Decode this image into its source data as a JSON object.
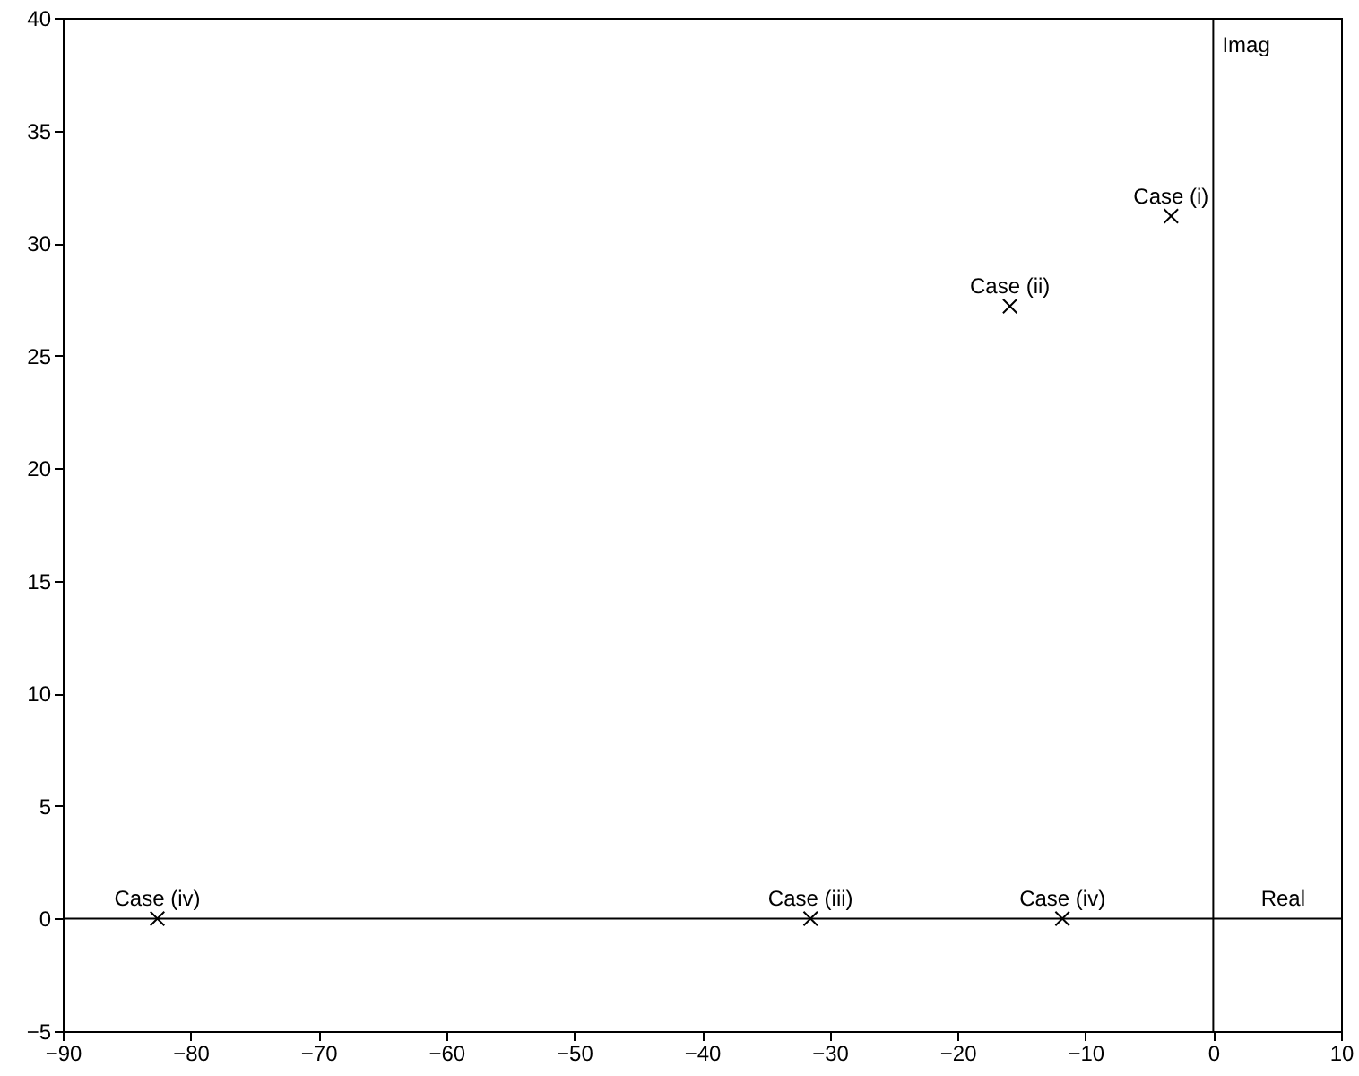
{
  "chart_data": {
    "type": "scatter",
    "x": [
      -3.3,
      -15.9,
      -31.5,
      -11.8,
      -82.6
    ],
    "series": [
      {
        "color": "#000000",
        "values": [
          31.2,
          27.2,
          0,
          0,
          0
        ]
      }
    ],
    "marker": "cross",
    "xlim": [
      -90,
      10
    ],
    "ylim": [
      -5,
      40
    ],
    "xticks": [
      -90,
      -80,
      -70,
      -60,
      -50,
      -40,
      -30,
      -20,
      -10,
      0,
      10
    ],
    "yticks": [
      -5,
      0,
      5,
      10,
      15,
      20,
      25,
      30,
      35,
      40
    ],
    "grid": false,
    "ref_lines": [
      {
        "axis": "x",
        "value": 0,
        "label": "Imag"
      },
      {
        "axis": "y",
        "value": 0,
        "label": "Real"
      }
    ],
    "annotations": [
      {
        "text": "Case (i)",
        "x": -3.3,
        "y": 31.2
      },
      {
        "text": "Case (ii)",
        "x": -15.9,
        "y": 27.2
      },
      {
        "text": "Case (iii)",
        "x": -31.5,
        "y": 0
      },
      {
        "text": "Case (iv)",
        "x": -11.8,
        "y": 0
      },
      {
        "text": "Case (iv)",
        "x": -82.6,
        "y": 0
      }
    ]
  }
}
